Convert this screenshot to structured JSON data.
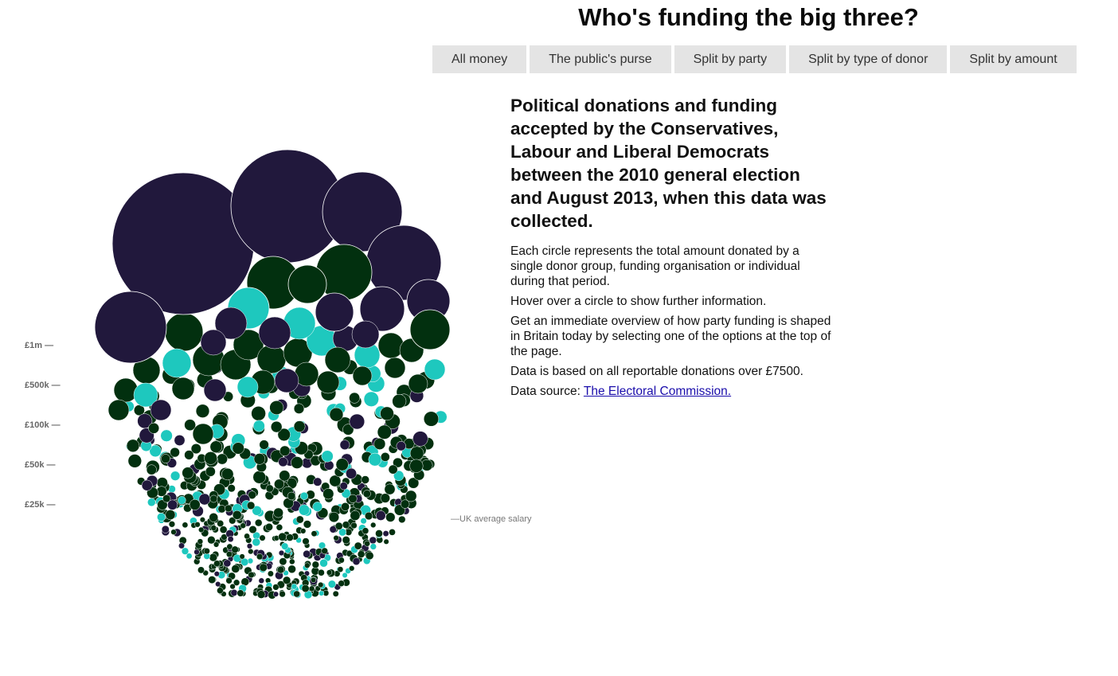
{
  "page": {
    "title": "Who's funding the big three?"
  },
  "nav": {
    "buttons": [
      {
        "label": "All money"
      },
      {
        "label": "The public's purse"
      },
      {
        "label": "Split by party"
      },
      {
        "label": "Split by type of donor"
      },
      {
        "label": "Split by amount"
      }
    ]
  },
  "description": {
    "headline": "Political donations and funding accepted by the Conservatives, Labour and Liberal Democrats between the 2010 general election and August 2013, when this data was collected.",
    "paragraphs": [
      "Each circle represents the total amount donated by a single donor group, funding organisation or individual during that period.",
      "Hover over a circle to show further information.",
      "Get an immediate overview of how party funding is shaped in Britain today by selecting one of the options at the top of the page.",
      "Data is based on all reportable donations over £7500."
    ],
    "source_prefix": "Data source: ",
    "source_link": "The Electoral Commission."
  },
  "scale": {
    "labels": [
      "£1m —",
      "£500k —",
      "£100k —",
      "£50k —",
      "£25k —"
    ],
    "salary_marker": "—UK average salary"
  },
  "colors": {
    "dark_purple": "#21183c",
    "dark_green": "#02300f",
    "teal": "#1ec8be",
    "button_bg": "#e4e4e4"
  },
  "chart_data": {
    "type": "bubble-cluster",
    "title": "",
    "size_scale_labels": [
      "£1m",
      "£500k",
      "£100k",
      "£50k",
      "£25k"
    ],
    "reference_marker": "UK average salary",
    "series": [
      {
        "color": "#21183c"
      },
      {
        "color": "#02300f"
      },
      {
        "color": "#1ec8be"
      }
    ],
    "large_circles": [
      {
        "series": 0,
        "radius_rel": 1.0
      },
      {
        "series": 0,
        "radius_rel": 0.78
      },
      {
        "series": 0,
        "radius_rel": 0.56
      },
      {
        "series": 0,
        "radius_rel": 0.52
      },
      {
        "series": 0,
        "radius_rel": 0.5
      },
      {
        "series": 1,
        "radius_rel": 0.39
      },
      {
        "series": 1,
        "radius_rel": 0.37
      },
      {
        "series": 2,
        "radius_rel": 0.29
      },
      {
        "series": 0,
        "radius_rel": 0.31
      },
      {
        "series": 1,
        "radius_rel": 0.28
      }
    ],
    "band_counts": [
      15,
      60,
      110,
      170,
      320
    ]
  }
}
